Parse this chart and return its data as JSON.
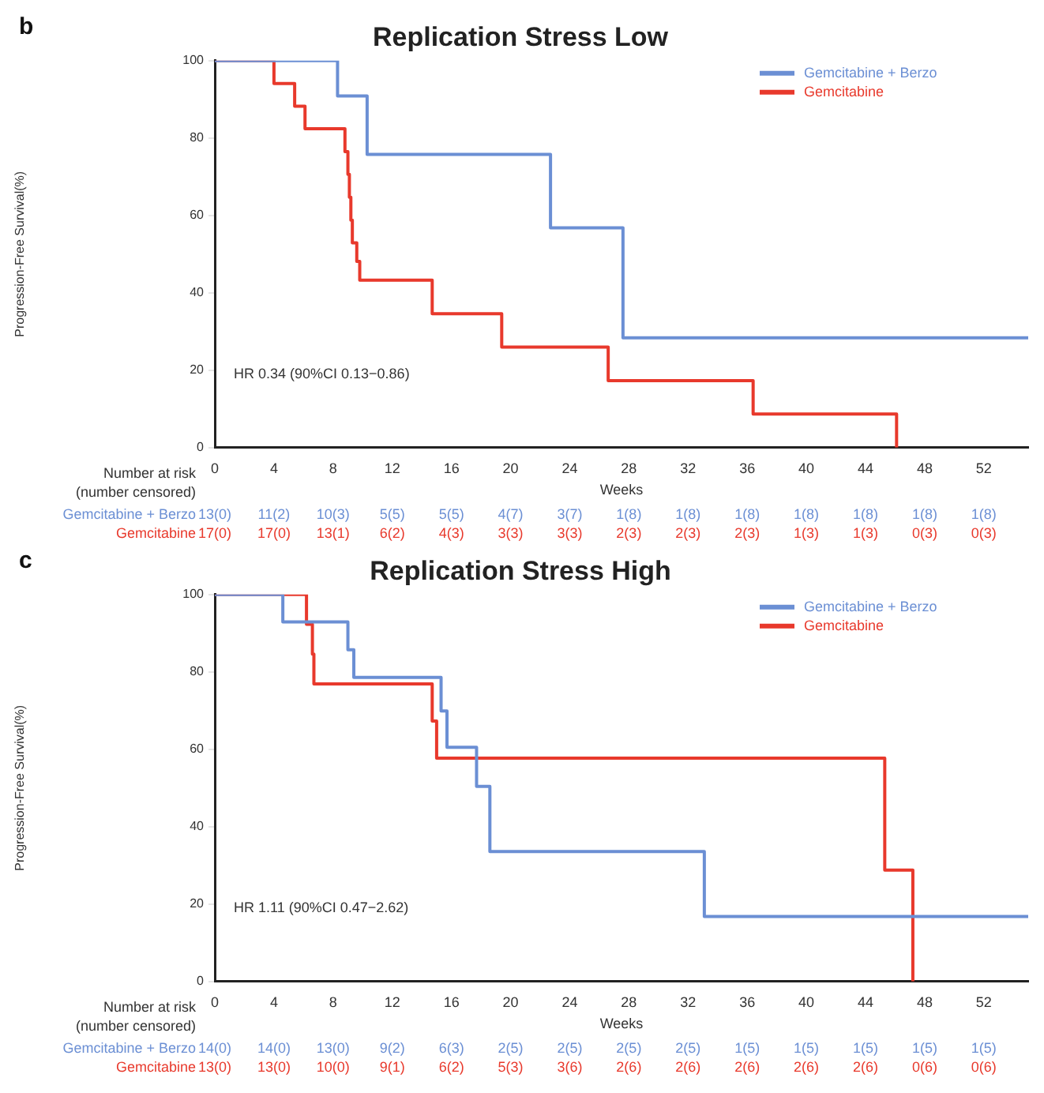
{
  "chart_data": [
    {
      "type": "step",
      "title": "Replication Stress Low",
      "xlabel": "Weeks",
      "ylabel": "Progression-Free Survival(%)",
      "xlim": [
        0,
        55
      ],
      "xticks": [
        0,
        4,
        8,
        12,
        16,
        20,
        24,
        28,
        32,
        36,
        40,
        44,
        48,
        52
      ],
      "ylim": [
        0,
        100
      ],
      "yticks": [
        0,
        20,
        40,
        60,
        80,
        100
      ],
      "grid": false,
      "legend": "top right",
      "marker": "none",
      "line_style": "solid",
      "series": [
        {
          "name": "Gemcitabine + Berzo",
          "color": "#6b8fd4",
          "x": [
            0,
            8.3,
            10.3,
            22.7,
            27.6,
            55
          ],
          "values": [
            100,
            90.9,
            75.8,
            56.8,
            28.4,
            28.4
          ]
        },
        {
          "name": "Gemcitabine",
          "color": "#e8392c",
          "x": [
            0,
            4,
            5.4,
            6.1,
            8.8,
            9,
            9.1,
            9.2,
            9.3,
            9.6,
            9.8,
            14.7,
            19.4,
            26.6,
            36.4,
            46.1
          ],
          "values": [
            100,
            94.1,
            88.2,
            82.4,
            76.5,
            70.6,
            64.7,
            58.8,
            52.9,
            48.1,
            43.3,
            34.6,
            26,
            17.3,
            8.7,
            0
          ]
        }
      ],
      "annotations": [
        "b",
        "HR 0.34 (90%CI 0.13−0.86)",
        "Number at risk",
        "(number censored)",
        "13(0)",
        "11(2)",
        "10(3)",
        "5(5)",
        "5(5)",
        "4(7)",
        "3(7)",
        "1(8)",
        "1(8)",
        "1(8)",
        "1(8)",
        "1(8)",
        "1(8)",
        "1(8)",
        "17(0)",
        "17(0)",
        "13(1)",
        "6(2)",
        "4(3)",
        "3(3)",
        "3(3)",
        "2(3)",
        "2(3)",
        "2(3)",
        "1(3)",
        "1(3)",
        "0(3)",
        "0(3)"
      ]
    },
    {
      "type": "step",
      "title": "Replication Stress High",
      "xlabel": "Weeks",
      "ylabel": "Progression-Free Survival(%)",
      "xlim": [
        0,
        55
      ],
      "xticks": [
        0,
        4,
        8,
        12,
        16,
        20,
        24,
        28,
        32,
        36,
        40,
        44,
        48,
        52
      ],
      "ylim": [
        0,
        100
      ],
      "yticks": [
        0,
        20,
        40,
        60,
        80,
        100
      ],
      "grid": false,
      "legend": "top right",
      "marker": "none",
      "line_style": "solid",
      "series": [
        {
          "name": "Gemcitabine + Berzo",
          "color": "#6b8fd4",
          "x": [
            0,
            4.6,
            9,
            9.4,
            15.3,
            15.7,
            17.7,
            18.6,
            33.1,
            55
          ],
          "values": [
            100,
            92.9,
            85.7,
            78.6,
            69.9,
            60.5,
            50.4,
            33.6,
            16.8,
            16.8
          ]
        },
        {
          "name": "Gemcitabine",
          "color": "#e8392c",
          "x": [
            0,
            6.2,
            6.6,
            6.7,
            14.7,
            15,
            45.3,
            47.2
          ],
          "values": [
            100,
            92.3,
            84.6,
            76.9,
            67.3,
            57.7,
            28.8,
            0
          ]
        }
      ],
      "annotations": [
        "c",
        "HR 1.11 (90%CI 0.47−2.62)",
        "Number at risk",
        "(number censored)",
        "14(0)",
        "14(0)",
        "13(0)",
        "9(2)",
        "6(3)",
        "2(5)",
        "2(5)",
        "2(5)",
        "2(5)",
        "1(5)",
        "1(5)",
        "1(5)",
        "1(5)",
        "1(5)",
        "13(0)",
        "13(0)",
        "10(0)",
        "9(1)",
        "6(2)",
        "5(3)",
        "3(6)",
        "2(6)",
        "2(6)",
        "2(6)",
        "2(6)",
        "2(6)",
        "0(6)",
        "0(6)"
      ]
    }
  ]
}
